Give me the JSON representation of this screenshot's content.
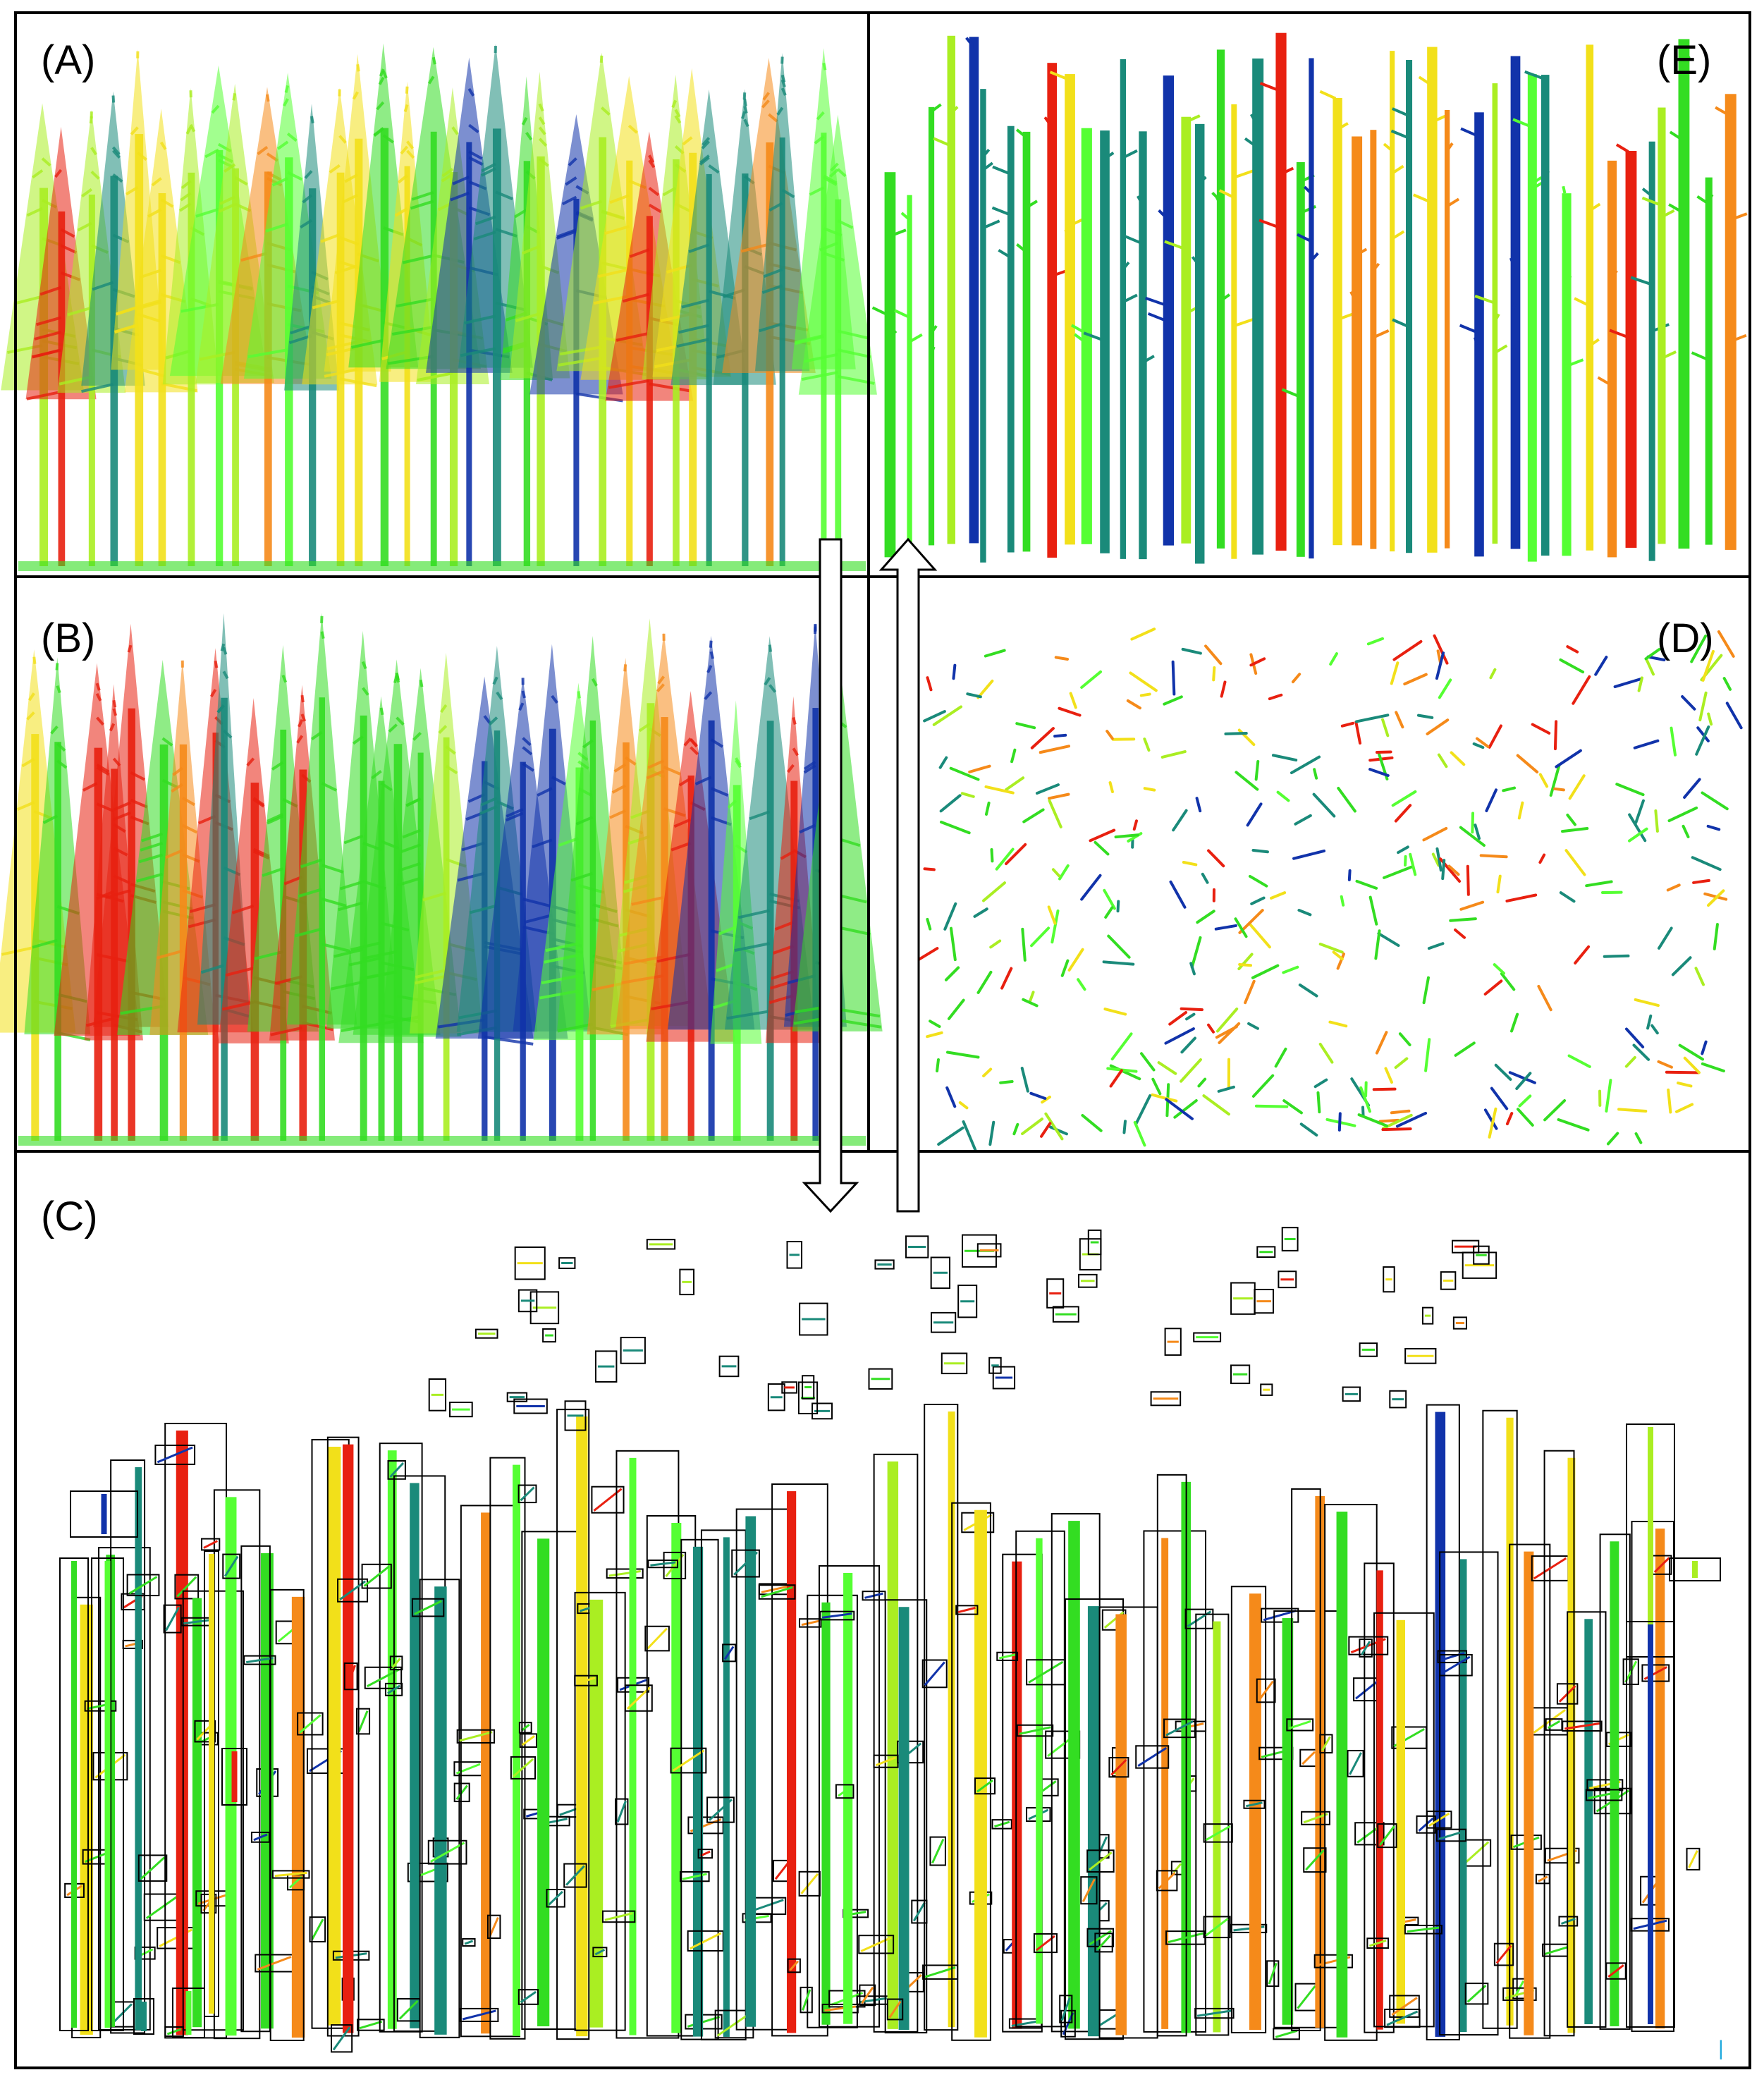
{
  "figure": {
    "panels": [
      {
        "id": "A",
        "label": "(A)"
      },
      {
        "id": "E",
        "label": "(E)"
      },
      {
        "id": "B",
        "label": "(B)"
      },
      {
        "id": "D",
        "label": "(D)"
      },
      {
        "id": "C",
        "label": "(C)"
      }
    ],
    "scale_marker": "|",
    "palette": {
      "green": "#33dd22",
      "lime": "#aaee22",
      "bright_green": "#55ff33",
      "teal": "#1a8a7a",
      "dark_blue": "#1133aa",
      "yellow": "#f2e01a",
      "orange": "#f58a1a",
      "red": "#e82010",
      "frame": "#000000",
      "marker": "#22aadd"
    }
  }
}
